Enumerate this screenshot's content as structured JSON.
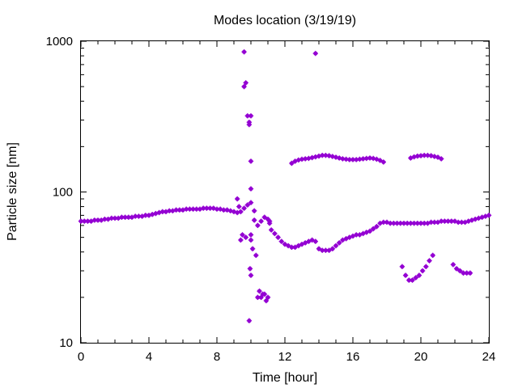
{
  "chart_data": {
    "type": "scatter",
    "title": "Modes location (3/19/19)",
    "xlabel": "Time [hour]",
    "ylabel": "Particle size [nm]",
    "xlim": [
      0,
      24
    ],
    "ylim": [
      10,
      1000
    ],
    "yscale": "log",
    "grid": false,
    "legend": "none",
    "marker_color": "#9400d3",
    "x_ticks": [
      {
        "value": 0,
        "label": "0"
      },
      {
        "value": 4,
        "label": "4"
      },
      {
        "value": 8,
        "label": "8"
      },
      {
        "value": 12,
        "label": "12"
      },
      {
        "value": 16,
        "label": "16"
      },
      {
        "value": 20,
        "label": "20"
      },
      {
        "value": 24,
        "label": "24"
      }
    ],
    "y_ticks": [
      {
        "value": 10,
        "label": "10"
      },
      {
        "value": 100,
        "label": "100"
      },
      {
        "value": 1000,
        "label": "1000"
      }
    ],
    "series": [
      {
        "id": "main-mode",
        "x": [
          0,
          0.2,
          0.4,
          0.6,
          0.8,
          1,
          1.2,
          1.4,
          1.6,
          1.8,
          2,
          2.2,
          2.4,
          2.6,
          2.8,
          3,
          3.2,
          3.4,
          3.6,
          3.8,
          4,
          4.2,
          4.4,
          4.6,
          4.8,
          5,
          5.2,
          5.4,
          5.6,
          5.8,
          6,
          6.2,
          6.4,
          6.6,
          6.8,
          7,
          7.2,
          7.4,
          7.6,
          7.8,
          8,
          8.2,
          8.4,
          8.6,
          8.8,
          9,
          9.2,
          9.4,
          9.6,
          9.8,
          10,
          10.2,
          10.4,
          10.6,
          10.8,
          11,
          11.2,
          11.4,
          11.6,
          11.8,
          12,
          12.2,
          12.4,
          12.6,
          12.8,
          13,
          13.2,
          13.4,
          13.6,
          13.8,
          14,
          14.2,
          14.4,
          14.6,
          14.8,
          15,
          15.2,
          15.4,
          15.6,
          15.8,
          16,
          16.2,
          16.4,
          16.6,
          16.8,
          17,
          17.2,
          17.4,
          17.6,
          17.8,
          18,
          18.2,
          18.4,
          18.6,
          18.8,
          19,
          19.2,
          19.4,
          19.6,
          19.8,
          20,
          20.2,
          20.4,
          20.6,
          20.8,
          21,
          21.2,
          21.4,
          21.6,
          21.8,
          22,
          22.2,
          22.4,
          22.6,
          22.8,
          23,
          23.2,
          23.4,
          23.6,
          23.8,
          24
        ],
        "y": [
          64,
          64,
          64,
          64,
          65,
          65,
          65,
          66,
          66,
          67,
          67,
          67,
          68,
          68,
          68,
          68,
          69,
          69,
          69,
          70,
          70,
          71,
          72,
          73,
          74,
          74,
          75,
          75,
          76,
          76,
          76,
          77,
          77,
          77,
          77,
          77,
          78,
          78,
          78,
          78,
          77,
          77,
          76,
          76,
          75,
          74,
          73,
          74,
          78,
          82,
          85,
          65,
          60,
          64,
          68,
          66,
          56,
          53,
          50,
          47,
          45,
          44,
          43,
          43,
          44,
          45,
          46,
          47,
          48,
          47,
          42,
          41,
          41,
          41,
          42,
          44,
          46,
          48,
          49,
          50,
          51,
          52,
          52,
          53,
          54,
          55,
          57,
          59,
          62,
          63,
          63,
          62,
          62,
          62,
          62,
          62,
          62,
          62,
          62,
          62,
          62,
          62,
          62,
          63,
          63,
          63,
          64,
          64,
          64,
          64,
          64,
          63,
          63,
          63,
          64,
          65,
          66,
          67,
          68,
          69,
          70
        ]
      },
      {
        "id": "upper-mode-1",
        "x": [
          12.4,
          12.6,
          12.8,
          13,
          13.2,
          13.4,
          13.6,
          13.8,
          14,
          14.2,
          14.4,
          14.6,
          14.8,
          15,
          15.2,
          15.4,
          15.6,
          15.8,
          16,
          16.2,
          16.4,
          16.6,
          16.8,
          17,
          17.2,
          17.4,
          17.6,
          17.8
        ],
        "y": [
          155,
          160,
          163,
          165,
          166,
          167,
          169,
          171,
          173,
          175,
          175,
          174,
          172,
          170,
          168,
          166,
          165,
          164,
          164,
          164,
          165,
          166,
          167,
          168,
          167,
          165,
          162,
          158
        ]
      },
      {
        "id": "upper-mode-2",
        "x": [
          19.4,
          19.6,
          19.8,
          20,
          20.2,
          20.4,
          20.6,
          20.8,
          21,
          21.2
        ],
        "y": [
          168,
          171,
          173,
          174,
          175,
          175,
          174,
          172,
          170,
          166
        ]
      },
      {
        "id": "lower-mode-1",
        "x": [
          18.9,
          19.1,
          19.3,
          19.5,
          19.7,
          19.9,
          20.1,
          20.3,
          20.5,
          20.7
        ],
        "y": [
          32,
          28,
          26,
          26,
          27,
          28,
          30,
          32,
          35,
          38
        ]
      },
      {
        "id": "lower-mode-2",
        "x": [
          21.9,
          22.1,
          22.3,
          22.5,
          22.7,
          22.9
        ],
        "y": [
          33,
          31,
          30,
          29,
          29,
          29
        ]
      },
      {
        "id": "scattered-points",
        "x": [
          9.2,
          9.4,
          9.5,
          9.6,
          9.6,
          9.7,
          9.8,
          9.9,
          9.9,
          10,
          10,
          10,
          10,
          10.1,
          10.3,
          10.4,
          10.5,
          10.6,
          10.7,
          10.8,
          10.9,
          11,
          11.1,
          11.1,
          9.3,
          9.7,
          10.2,
          13.8
        ],
        "y": [
          90,
          48,
          52,
          500,
          850,
          530,
          320,
          290,
          280,
          320,
          160,
          105,
          48,
          42,
          38,
          20,
          22,
          20,
          21,
          21,
          19,
          20,
          64,
          62,
          80,
          50,
          75,
          830
        ]
      },
      {
        "id": "isolated-low",
        "x": [
          9.9,
          9.95,
          10,
          10.0
        ],
        "y": [
          14,
          31,
          28,
          52
        ]
      }
    ]
  }
}
